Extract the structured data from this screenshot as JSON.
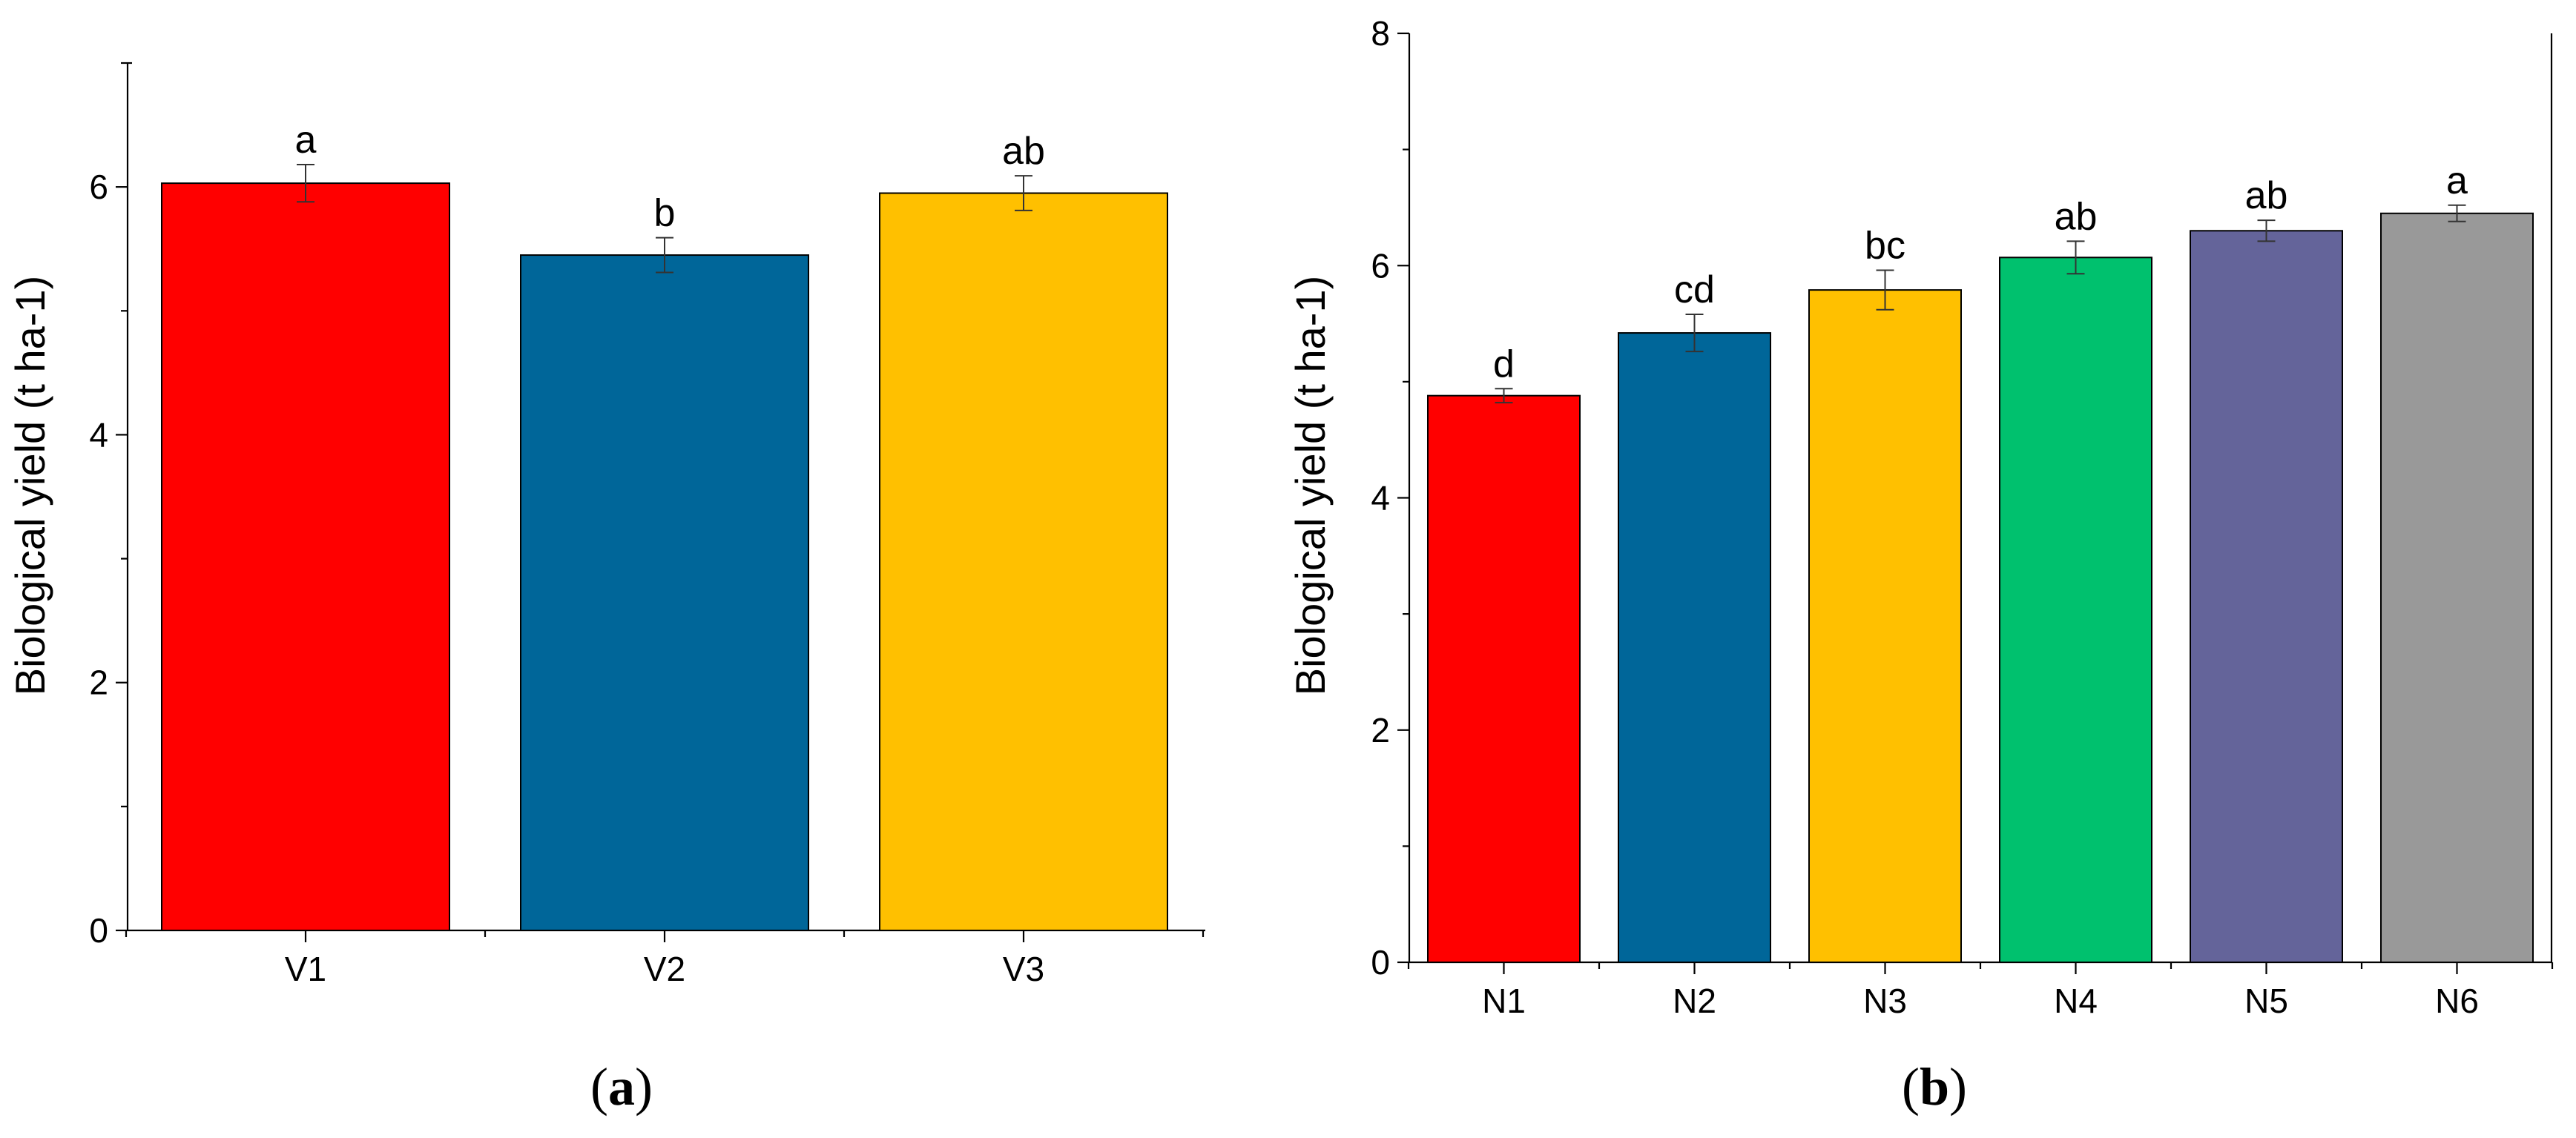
{
  "chart_data": [
    {
      "type": "bar",
      "panel_label": "a",
      "categories": [
        "V1",
        "V2",
        "V3"
      ],
      "values": [
        6.03,
        5.45,
        5.95
      ],
      "errors": [
        0.15,
        0.14,
        0.14
      ],
      "significance_letters": [
        "a",
        "b",
        "ab"
      ],
      "colors": [
        "#ff0000",
        "#006699",
        "#ffc000"
      ],
      "ylabel": "Biological yield (t ha-1)",
      "xlabel": "",
      "ylim": [
        0,
        7
      ],
      "yticks": [
        0,
        2,
        4,
        6
      ],
      "ytick_labels": [
        "0",
        "2",
        "4",
        "6"
      ]
    },
    {
      "type": "bar",
      "panel_label": "b",
      "categories": [
        "N1",
        "N2",
        "N3",
        "N4",
        "N5",
        "N6"
      ],
      "values": [
        4.88,
        5.42,
        5.79,
        6.07,
        6.3,
        6.45
      ],
      "errors": [
        0.06,
        0.16,
        0.17,
        0.14,
        0.09,
        0.07
      ],
      "significance_letters": [
        "d",
        "cd",
        "bc",
        "ab",
        "ab",
        "a"
      ],
      "colors": [
        "#ff0000",
        "#006699",
        "#ffc000",
        "#00c16e",
        "#64649a",
        "#999999"
      ],
      "ylabel": "Biological yield (t ha-1)",
      "xlabel": "",
      "ylim": [
        0,
        8
      ],
      "yticks": [
        0,
        2,
        4,
        6,
        8
      ],
      "ytick_labels": [
        "0",
        "2",
        "4",
        "6",
        "8"
      ]
    }
  ]
}
